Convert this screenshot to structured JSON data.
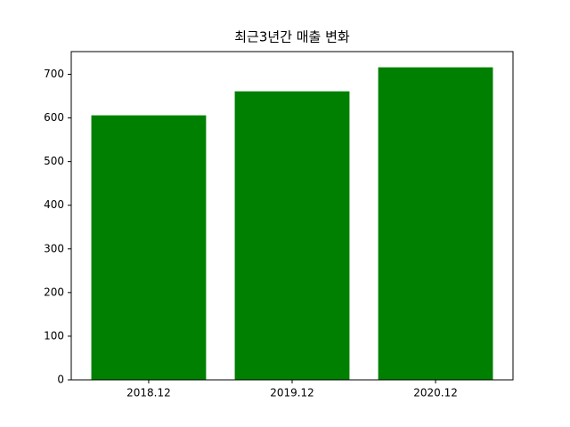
{
  "chart_data": {
    "type": "bar",
    "title": "최근3년간 매출 변화",
    "categories": [
      "2018.12",
      "2019.12",
      "2020.12"
    ],
    "values": [
      606,
      661,
      716
    ],
    "color": "#008000",
    "ylim": [
      0,
      752
    ],
    "yticks": [
      0,
      100,
      200,
      300,
      400,
      500,
      600,
      700
    ],
    "grid": false
  }
}
